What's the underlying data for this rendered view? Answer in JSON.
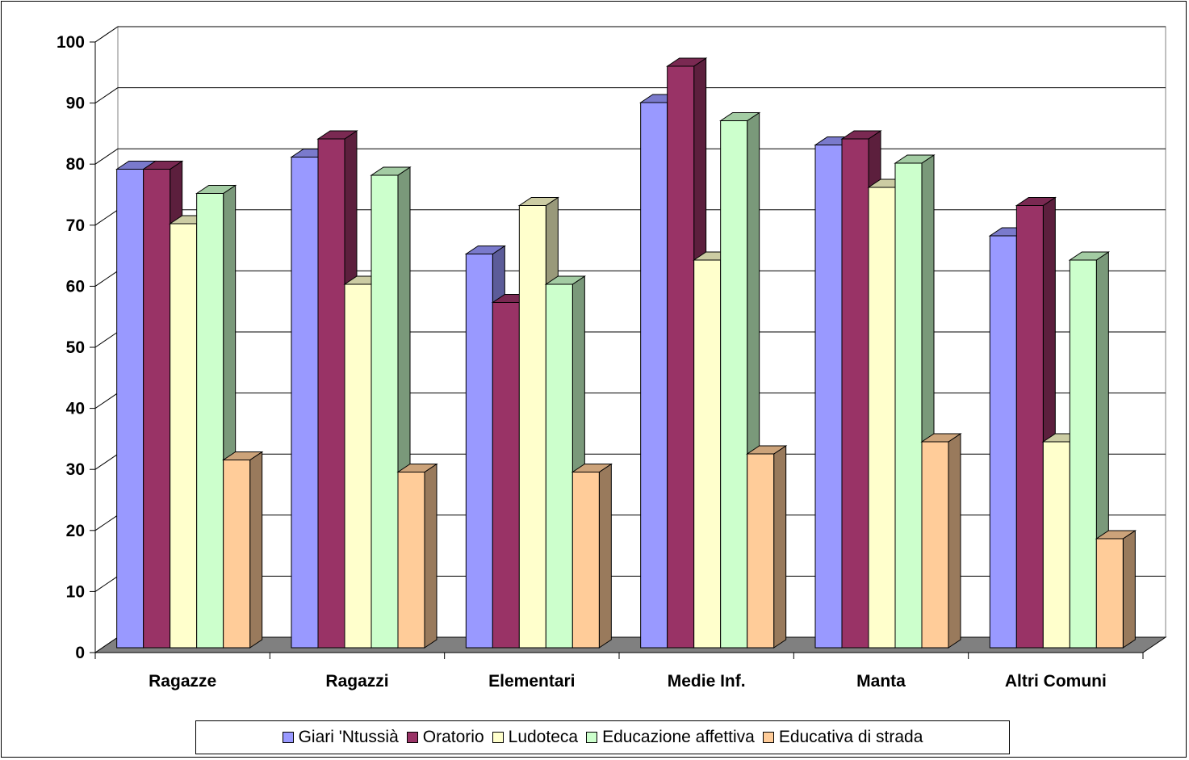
{
  "chart_data": {
    "type": "bar",
    "title": "",
    "xlabel": "",
    "ylabel": "",
    "ylim": [
      0,
      100
    ],
    "yticks": [
      "0",
      "10",
      "20",
      "30",
      "40",
      "50",
      "60",
      "70",
      "80",
      "90",
      "100"
    ],
    "categories": [
      "Ragazze",
      "Ragazzi",
      "Elementari",
      "Medie Inf.",
      "Manta",
      "Altri Comuni"
    ],
    "series": [
      {
        "name": "Giari 'Ntussià",
        "color": "#9999ff",
        "values": [
          79,
          81,
          65,
          90,
          83,
          68
        ]
      },
      {
        "name": "Oratorio",
        "color": "#993366",
        "values": [
          79,
          84,
          57,
          96,
          84,
          73
        ]
      },
      {
        "name": "Ludoteca",
        "color": "#ffffcc",
        "values": [
          70,
          60,
          73,
          64,
          76,
          34
        ]
      },
      {
        "name": "Educazione affettiva",
        "color": "#ccffcc",
        "values": [
          75,
          78,
          60,
          87,
          80,
          64
        ]
      },
      {
        "name": "Educativa di strada",
        "color": "#ffcc99",
        "values": [
          31,
          29,
          29,
          32,
          34,
          18
        ]
      }
    ],
    "grid": true,
    "legend_position": "bottom",
    "style": "3d-clustered-column"
  }
}
